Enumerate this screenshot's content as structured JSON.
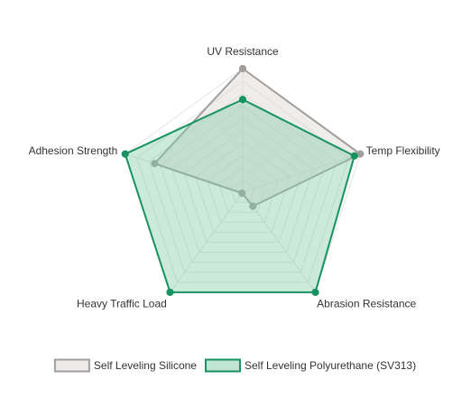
{
  "chart_data": {
    "type": "radar",
    "title": "",
    "axes": [
      "UV Resistance",
      "Temp Flexibility",
      "Abrasion Resistance",
      "Heavy Traffic Load",
      "Adhesion Strength"
    ],
    "range": [
      0,
      10
    ],
    "split_number": 10,
    "grid": true,
    "legend_position": "bottom",
    "series": [
      {
        "name": "Self Leveling Silicone",
        "values": [
          10,
          10,
          1.4,
          0.1,
          7.5
        ],
        "line_color": "#a29e9c",
        "fill_color": "#dcd8d5",
        "fill_opacity": 0.45
      },
      {
        "name": "Self Leveling Polyurethane (SV313)",
        "values": [
          7.5,
          9.5,
          10,
          10,
          10
        ],
        "line_color": "#18935f",
        "fill_color": "#7fcaa3",
        "fill_opacity": 0.4
      }
    ]
  }
}
